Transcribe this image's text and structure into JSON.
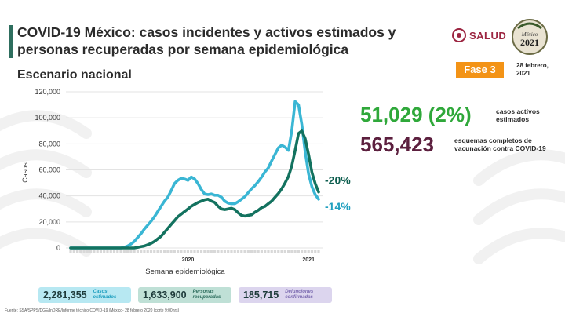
{
  "header": {
    "title": "COVID-19 México: casos incidentes y activos estimados y personas recuperadas por semana epidemiológica",
    "subtitle": "Escenario nacional",
    "logo_text": "SALUD",
    "logo_year": "2021",
    "logo_caption": "México",
    "phase": "Fase 3",
    "date": "28 febrero, 2021"
  },
  "stats": {
    "active_value": "51,029 (2%)",
    "active_label": "casos activos estimados",
    "vaccine_value": "565,423",
    "vaccine_label": "esquemas completos de vacunación contra COVID-19"
  },
  "chart_data": {
    "type": "line",
    "ylabel": "Casos",
    "xlabel": "Semana epidemiológica",
    "ylim": [
      0,
      120000
    ],
    "yticks": [
      "0",
      "20,000",
      "40,000",
      "60,000",
      "80,000",
      "100,000",
      "120,000"
    ],
    "year_labels": [
      {
        "label": "2020",
        "week": 2020.0
      },
      {
        "label": "2021",
        "week": 2021.0
      }
    ],
    "legend": "none",
    "grid": true,
    "colors": {
      "estimated": "#3ab6d4",
      "recovered": "#13725f"
    },
    "series": [
      {
        "key": "estimated",
        "values": [
          0,
          0,
          0,
          0,
          0,
          0,
          0,
          0,
          0,
          0,
          0,
          0,
          0,
          0,
          0,
          0,
          500,
          1500,
          3000,
          5000,
          8000,
          11000,
          14500,
          17500,
          20500,
          24000,
          28000,
          32000,
          36000,
          39000,
          44000,
          49500,
          52000,
          53500,
          53000,
          52000,
          54500,
          53000,
          49500,
          45000,
          41500,
          41000,
          41500,
          40500,
          40500,
          39000,
          36000,
          34500,
          34000,
          34000,
          35500,
          37500,
          39500,
          42500,
          45500,
          48000,
          51000,
          54500,
          58500,
          61500,
          67000,
          72000,
          77000,
          79000,
          77500,
          75000,
          90000,
          112500,
          110000,
          95000,
          74000,
          57000,
          47000,
          41000,
          37500
        ],
        "end_label": "-14%"
      },
      {
        "key": "recovered",
        "values": [
          0,
          0,
          0,
          0,
          0,
          0,
          0,
          0,
          0,
          0,
          0,
          0,
          0,
          0,
          0,
          0,
          0,
          0,
          0,
          0,
          500,
          1000,
          1500,
          2500,
          3500,
          5000,
          7000,
          9000,
          12000,
          15000,
          18000,
          21000,
          24000,
          26000,
          28000,
          30000,
          32000,
          33500,
          35000,
          36000,
          37000,
          37500,
          36000,
          35000,
          32000,
          30000,
          29500,
          30000,
          30500,
          29500,
          27000,
          25000,
          24500,
          25000,
          25500,
          27500,
          29000,
          31000,
          32000,
          34000,
          36000,
          39000,
          42000,
          45500,
          50000,
          55000,
          63000,
          75000,
          88000,
          90000,
          84000,
          72000,
          58000,
          49500,
          43000
        ],
        "end_label": "-20%"
      }
    ]
  },
  "summary": {
    "estimated_value": "2,281,355",
    "estimated_label": "Casos estimados",
    "recovered_value": "1,633,900",
    "recovered_label": "Personas recuperadas",
    "deaths_value": "185,715",
    "deaths_label": "Defunciones confirmadas"
  },
  "footer": {
    "source": "Fuente: SSA/SPPS/DGE/InDRE/Informe técnico.COVID-19 /México- 28 febrero 2020 (corte 9:00hrs)"
  }
}
